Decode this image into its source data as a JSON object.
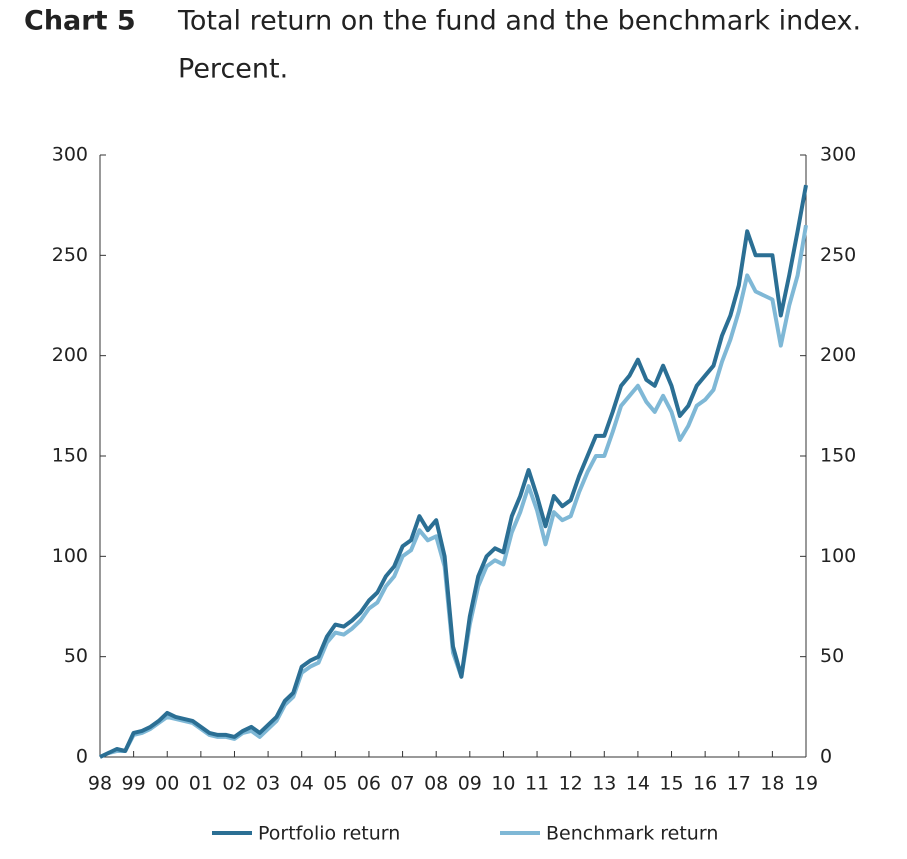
{
  "chart_data": {
    "type": "line",
    "label": "Chart 5",
    "title": "Total return on the fund and the benchmark index.",
    "subtitle": "Percent.",
    "categories": [
      "98",
      null,
      null,
      null,
      "99",
      null,
      null,
      null,
      "00",
      null,
      null,
      null,
      "01",
      null,
      null,
      null,
      "02",
      null,
      null,
      null,
      "03",
      null,
      null,
      null,
      "04",
      null,
      null,
      null,
      "05",
      null,
      null,
      null,
      "06",
      null,
      null,
      null,
      "07",
      null,
      null,
      null,
      "08",
      null,
      null,
      null,
      "09",
      null,
      null,
      null,
      "10",
      null,
      null,
      null,
      "11",
      null,
      null,
      null,
      "12",
      null,
      null,
      null,
      "13",
      null,
      null,
      null,
      "14",
      null,
      null,
      null,
      "15",
      null,
      null,
      null,
      "16",
      null,
      null,
      null,
      "17",
      null,
      null,
      null,
      "18",
      null,
      null,
      null,
      "19"
    ],
    "series": [
      {
        "name": "Portfolio return",
        "color": "#2b6f94",
        "values": [
          0,
          2,
          4,
          3,
          12,
          13,
          15,
          18,
          22,
          20,
          19,
          18,
          15,
          12,
          11,
          11,
          10,
          13,
          15,
          12,
          16,
          20,
          28,
          32,
          45,
          48,
          50,
          60,
          66,
          65,
          68,
          72,
          78,
          82,
          90,
          95,
          105,
          108,
          120,
          113,
          118,
          100,
          55,
          40,
          70,
          90,
          100,
          104,
          102,
          120,
          130,
          143,
          130,
          115,
          130,
          125,
          128,
          140,
          150,
          160,
          160,
          172,
          185,
          190,
          198,
          188,
          185,
          195,
          185,
          170,
          175,
          185,
          190,
          195,
          210,
          220,
          235,
          262,
          250,
          250,
          250,
          220,
          240,
          262,
          285
        ]
      },
      {
        "name": "Benchmark return",
        "color": "#7fb8d6",
        "values": [
          0,
          2,
          3,
          3,
          11,
          12,
          14,
          17,
          20,
          19,
          18,
          17,
          14,
          11,
          10,
          10,
          9,
          12,
          13,
          10,
          14,
          18,
          26,
          30,
          42,
          45,
          47,
          57,
          62,
          61,
          64,
          68,
          74,
          77,
          85,
          90,
          100,
          103,
          113,
          108,
          110,
          95,
          52,
          40,
          66,
          85,
          95,
          98,
          96,
          112,
          122,
          135,
          123,
          106,
          122,
          118,
          120,
          132,
          142,
          150,
          150,
          162,
          175,
          180,
          185,
          177,
          172,
          180,
          172,
          158,
          165,
          175,
          178,
          183,
          197,
          208,
          222,
          240,
          232,
          230,
          228,
          205,
          225,
          240,
          265
        ]
      }
    ],
    "ylim": [
      0,
      300
    ],
    "yticks": [
      0,
      50,
      100,
      150,
      200,
      250,
      300
    ],
    "y2lim": [
      0,
      300
    ],
    "y2ticks": [
      0,
      50,
      100,
      150,
      200,
      250,
      300
    ],
    "grid": false
  }
}
